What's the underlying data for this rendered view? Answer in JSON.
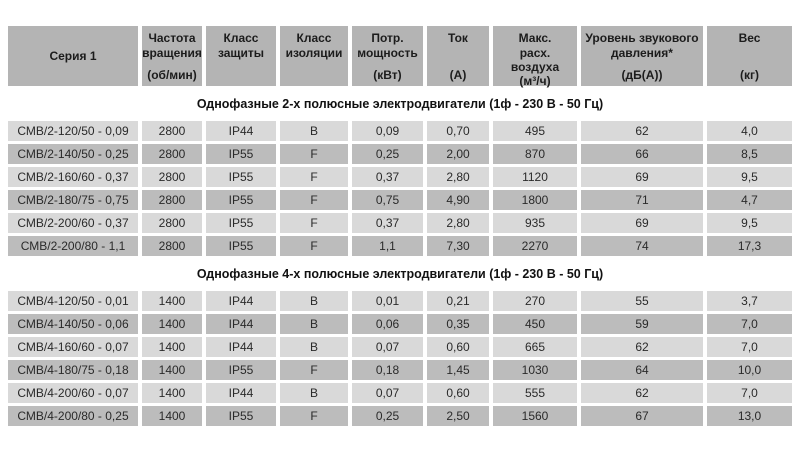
{
  "colors": {
    "header_bg": "#b4b4b4",
    "row_light": "#d9d9d9",
    "row_dark": "#bcbcbc",
    "page_bg": "#ffffff"
  },
  "table": {
    "columns": [
      {
        "label": "Серия 1",
        "unit": ""
      },
      {
        "label": "Частота вращения",
        "unit": "(об/мин)"
      },
      {
        "label": "Класс защиты",
        "unit": ""
      },
      {
        "label": "Класс изоляции",
        "unit": ""
      },
      {
        "label": "Потр. мощность",
        "unit": "(кВт)"
      },
      {
        "label": "Ток",
        "unit": "(А)"
      },
      {
        "label": "Макс.\nрасх.\nвоздуха",
        "unit": "(м³/ч)"
      },
      {
        "label": "Уровень звукового давления*",
        "unit": "(дБ(А))"
      },
      {
        "label": "Вес",
        "unit": "(кг)"
      }
    ],
    "sections": [
      {
        "title": "Однофазные 2-х полюсные электродвигатели (1ф - 230 В - 50 Гц)",
        "rows": [
          [
            "СМВ/2-120/50 - 0,09",
            "2800",
            "IP44",
            "B",
            "0,09",
            "0,70",
            "495",
            "62",
            "4,0"
          ],
          [
            "СМВ/2-140/50 - 0,25",
            "2800",
            "IP55",
            "F",
            "0,25",
            "2,00",
            "870",
            "66",
            "8,5"
          ],
          [
            "СМВ/2-160/60 - 0,37",
            "2800",
            "IP55",
            "F",
            "0,37",
            "2,80",
            "1120",
            "69",
            "9,5"
          ],
          [
            "СМВ/2-180/75 - 0,75",
            "2800",
            "IP55",
            "F",
            "0,75",
            "4,90",
            "1800",
            "71",
            "4,7"
          ],
          [
            "СМВ/2-200/60 - 0,37",
            "2800",
            "IP55",
            "F",
            "0,37",
            "2,80",
            "935",
            "69",
            "9,5"
          ],
          [
            "СМВ/2-200/80 - 1,1",
            "2800",
            "IP55",
            "F",
            "1,1",
            "7,30",
            "2270",
            "74",
            "17,3"
          ]
        ]
      },
      {
        "title": "Однофазные 4-х полюсные электродвигатели (1ф - 230 В - 50 Гц)",
        "rows": [
          [
            "СМВ/4-120/50 - 0,01",
            "1400",
            "IP44",
            "B",
            "0,01",
            "0,21",
            "270",
            "55",
            "3,7"
          ],
          [
            "СМВ/4-140/50 - 0,06",
            "1400",
            "IP44",
            "B",
            "0,06",
            "0,35",
            "450",
            "59",
            "7,0"
          ],
          [
            "СМВ/4-160/60 - 0,07",
            "1400",
            "IP44",
            "B",
            "0,07",
            "0,60",
            "665",
            "62",
            "7,0"
          ],
          [
            "СМВ/4-180/75 - 0,18",
            "1400",
            "IP55",
            "F",
            "0,18",
            "1,45",
            "1030",
            "64",
            "10,0"
          ],
          [
            "СМВ/4-200/60 - 0,07",
            "1400",
            "IP44",
            "B",
            "0,07",
            "0,60",
            "555",
            "62",
            "7,0"
          ],
          [
            "СМВ/4-200/80 - 0,25",
            "1400",
            "IP55",
            "F",
            "0,25",
            "2,50",
            "1560",
            "67",
            "13,0"
          ]
        ]
      }
    ]
  }
}
